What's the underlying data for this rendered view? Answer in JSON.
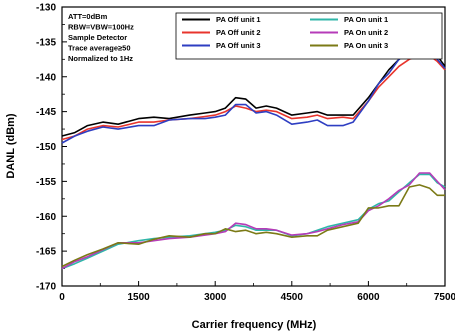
{
  "chart_data": {
    "type": "line",
    "title": "",
    "xlabel": "Carrier frequency (MHz)",
    "ylabel": "DANL (dBm)",
    "xlim": [
      0,
      7500
    ],
    "ylim": [
      -170,
      -130
    ],
    "xticks": [
      0,
      1500,
      3000,
      4500,
      6000,
      7500
    ],
    "xtick_labels": [
      "0",
      "1500",
      "3000",
      "4500",
      "6000",
      "7500"
    ],
    "yticks": [
      -170,
      -165,
      -160,
      -155,
      -150,
      -145,
      -140,
      -135,
      -130
    ],
    "ytick_labels": [
      "-170",
      "-165",
      "-160",
      "-155",
      "-150",
      "-145",
      "-140",
      "-135",
      "-130"
    ],
    "grid": false,
    "legend_position": "top-right",
    "annotation": [
      "ATT=0dBm",
      "RBW=VBW=100Hz",
      "Sample Detector",
      "Trace average≥50",
      "Normalized to 1Hz"
    ],
    "series": [
      {
        "name": "PA Off  unit 1",
        "color": "#000000",
        "x": [
          0,
          250,
          500,
          800,
          1100,
          1500,
          1800,
          2100,
          2500,
          2800,
          3000,
          3200,
          3400,
          3600,
          3800,
          4000,
          4200,
          4500,
          4800,
          5000,
          5200,
          5500,
          5700,
          6000,
          6200,
          6400,
          6600,
          6800,
          7000,
          7200,
          7350,
          7500
        ],
        "y": [
          -148.5,
          -148,
          -147,
          -146.5,
          -146.8,
          -146,
          -145.8,
          -146,
          -145.5,
          -145.2,
          -145,
          -144.5,
          -143,
          -143.2,
          -144.5,
          -144.2,
          -144.5,
          -145.5,
          -145.2,
          -145,
          -145.5,
          -145.5,
          -145.5,
          -143,
          -141,
          -139,
          -137.5,
          -136.5,
          -136,
          -136,
          -137,
          -138.5
        ]
      },
      {
        "name": "PA Off  unit 2",
        "color": "#e8342c",
        "x": [
          0,
          250,
          500,
          800,
          1100,
          1500,
          1800,
          2100,
          2500,
          2800,
          3000,
          3200,
          3400,
          3600,
          3800,
          4000,
          4200,
          4500,
          4800,
          5000,
          5200,
          5500,
          5700,
          6000,
          6200,
          6400,
          6600,
          6800,
          7000,
          7200,
          7350,
          7500
        ],
        "y": [
          -149,
          -148.5,
          -147.5,
          -147,
          -147.2,
          -146.5,
          -146.5,
          -146.2,
          -146,
          -145.7,
          -145.5,
          -145,
          -144.2,
          -144.5,
          -145,
          -144.8,
          -145,
          -146,
          -145.8,
          -145.5,
          -146,
          -145.8,
          -146,
          -143.5,
          -141.5,
          -140,
          -138.5,
          -137.5,
          -137,
          -137,
          -137.8,
          -139
        ]
      },
      {
        "name": "PA Off  unit 3",
        "color": "#2e3ec2",
        "x": [
          0,
          250,
          500,
          800,
          1100,
          1500,
          1800,
          2100,
          2500,
          2800,
          3000,
          3200,
          3400,
          3600,
          3800,
          4000,
          4200,
          4500,
          4800,
          5000,
          5200,
          5500,
          5700,
          6000,
          6200,
          6400,
          6600,
          6800,
          7000,
          7200,
          7350,
          7500
        ],
        "y": [
          -149.5,
          -148.5,
          -147.8,
          -147.2,
          -147.5,
          -147,
          -147,
          -146.2,
          -146,
          -146,
          -145.8,
          -145.5,
          -144,
          -144,
          -145.2,
          -145,
          -145.5,
          -146.8,
          -146.5,
          -146.2,
          -147,
          -147,
          -146.5,
          -143.5,
          -141,
          -139.5,
          -137.5,
          -136.5,
          -136,
          -136.2,
          -137.5,
          -138.8
        ]
      },
      {
        "name": "PA On  unit 1",
        "color": "#2fb6a8",
        "x": [
          0,
          250,
          500,
          800,
          1100,
          1500,
          1800,
          2100,
          2500,
          2800,
          3000,
          3200,
          3400,
          3600,
          3800,
          4000,
          4200,
          4500,
          4800,
          5000,
          5200,
          5500,
          5800,
          6000,
          6200,
          6400,
          6600,
          6800,
          7000,
          7200,
          7350,
          7500
        ],
        "y": [
          -167.5,
          -166.8,
          -166,
          -165,
          -164,
          -163.5,
          -163.2,
          -163,
          -162.8,
          -162.5,
          -162.3,
          -162,
          -161.3,
          -161.5,
          -162,
          -162,
          -162,
          -162.8,
          -162.5,
          -162,
          -161.5,
          -161,
          -160.5,
          -159,
          -158.2,
          -157.8,
          -156.5,
          -155.2,
          -154,
          -154,
          -155.2,
          -155.8
        ]
      },
      {
        "name": "PA On  unit 2",
        "color": "#b63bb8",
        "x": [
          0,
          250,
          500,
          800,
          1100,
          1500,
          1800,
          2100,
          2500,
          2800,
          3000,
          3200,
          3400,
          3600,
          3800,
          4000,
          4200,
          4500,
          4800,
          5000,
          5200,
          5500,
          5800,
          6000,
          6200,
          6400,
          6600,
          6800,
          7000,
          7200,
          7350,
          7500
        ],
        "y": [
          -167.5,
          -166.5,
          -165.8,
          -164.8,
          -163.8,
          -163.8,
          -163.5,
          -163.2,
          -163,
          -162.7,
          -162.5,
          -162.2,
          -161,
          -161.2,
          -161.8,
          -161.8,
          -162,
          -162.7,
          -162.5,
          -162.2,
          -161.8,
          -161.2,
          -160.8,
          -159.2,
          -158.5,
          -157.5,
          -156.3,
          -155.5,
          -153.8,
          -153.8,
          -155,
          -156.2
        ]
      },
      {
        "name": "PA On  unit 3",
        "color": "#7b7a16",
        "x": [
          0,
          250,
          500,
          800,
          1100,
          1500,
          1800,
          2100,
          2500,
          2800,
          3000,
          3200,
          3400,
          3600,
          3800,
          4000,
          4200,
          4500,
          4800,
          5000,
          5200,
          5500,
          5800,
          6000,
          6200,
          6400,
          6600,
          6800,
          7000,
          7200,
          7350,
          7500
        ],
        "y": [
          -167.2,
          -166.3,
          -165.5,
          -164.7,
          -163.8,
          -164,
          -163.3,
          -162.8,
          -163,
          -162.5,
          -162.5,
          -161.8,
          -162.2,
          -162,
          -162.5,
          -162.3,
          -162.5,
          -163,
          -162.8,
          -162.8,
          -162,
          -161.5,
          -161,
          -158.8,
          -158.8,
          -158.5,
          -158.5,
          -155.8,
          -155.5,
          -156,
          -157,
          -157
        ]
      }
    ]
  }
}
